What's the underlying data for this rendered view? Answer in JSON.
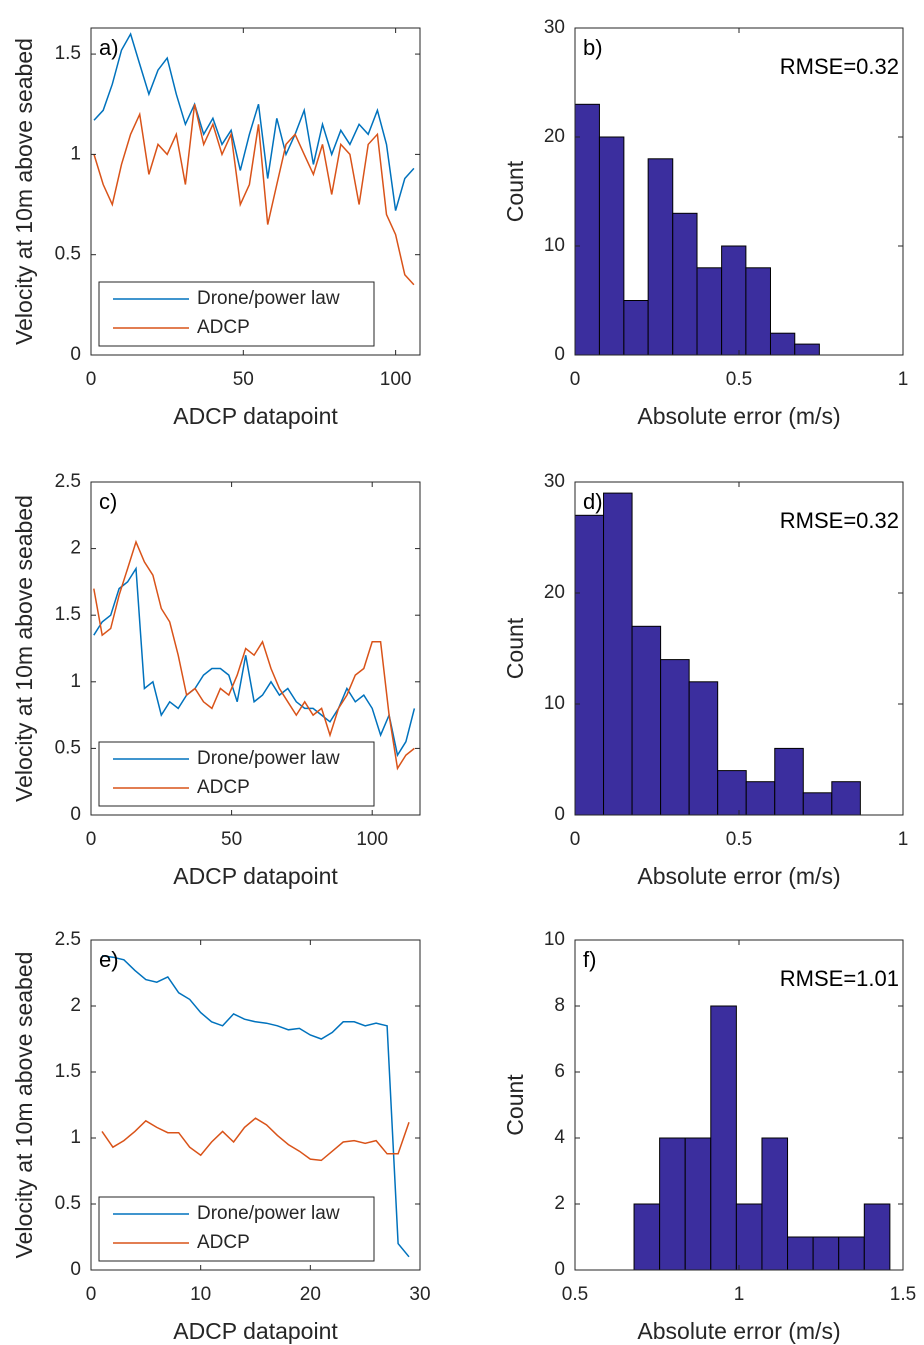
{
  "chart_data": [
    {
      "type": "line",
      "annotations": [
        "a)"
      ],
      "xlabel": "ADCP datapoint",
      "ylabel": "Velocity at 10m above seabed",
      "x": [
        1,
        4,
        7,
        10,
        13,
        16,
        19,
        22,
        25,
        28,
        31,
        34,
        37,
        40,
        43,
        46,
        49,
        52,
        55,
        58,
        61,
        64,
        67,
        70,
        73,
        76,
        79,
        82,
        85,
        88,
        91,
        94,
        97,
        100,
        103,
        106
      ],
      "series": [
        {
          "name": "Drone/power law",
          "color": "#0072BD",
          "values": [
            1.17,
            1.22,
            1.35,
            1.52,
            1.6,
            1.45,
            1.3,
            1.42,
            1.48,
            1.3,
            1.15,
            1.25,
            1.1,
            1.18,
            1.05,
            1.12,
            0.92,
            1.1,
            1.25,
            0.88,
            1.18,
            1.0,
            1.1,
            1.22,
            0.95,
            1.15,
            1.0,
            1.12,
            1.05,
            1.15,
            1.1,
            1.22,
            1.05,
            0.72,
            0.88,
            0.93
          ]
        },
        {
          "name": "ADCP",
          "color": "#D95319",
          "values": [
            1.0,
            0.85,
            0.75,
            0.95,
            1.1,
            1.2,
            0.9,
            1.05,
            1.0,
            1.1,
            0.85,
            1.25,
            1.05,
            1.15,
            1.0,
            1.1,
            0.75,
            0.85,
            1.15,
            0.65,
            0.85,
            1.05,
            1.1,
            1.0,
            0.9,
            1.05,
            0.8,
            1.05,
            1.0,
            0.75,
            1.05,
            1.1,
            0.7,
            0.6,
            0.4,
            0.35
          ]
        }
      ],
      "xlim": [
        0,
        108
      ],
      "ylim": [
        0,
        1.63
      ],
      "xticks": [
        0,
        50,
        100
      ],
      "yticks": [
        0,
        0.5,
        1,
        1.5
      ],
      "legend": "lower left"
    },
    {
      "type": "histogram",
      "annotations": [
        "b)",
        "RMSE=0.32"
      ],
      "xlabel": "Absolute error (m/s)",
      "ylabel": "Count",
      "color": "#3B2E9E",
      "bins": [
        0,
        0.0745,
        0.149,
        0.223,
        0.298,
        0.372,
        0.447,
        0.521,
        0.596,
        0.67,
        0.745
      ],
      "values": [
        23,
        20,
        5,
        18,
        13,
        8,
        10,
        8,
        2,
        1
      ],
      "xlim": [
        0,
        1
      ],
      "ylim": [
        0,
        30
      ],
      "xticks": [
        0,
        0.5,
        1
      ],
      "yticks": [
        0,
        10,
        20,
        30
      ]
    },
    {
      "type": "line",
      "annotations": [
        "c)"
      ],
      "xlabel": "ADCP datapoint",
      "ylabel": "Velocity at 10m above seabed",
      "x": [
        1,
        4,
        7,
        10,
        13,
        16,
        19,
        22,
        25,
        28,
        31,
        34,
        37,
        40,
        43,
        46,
        49,
        52,
        55,
        58,
        61,
        64,
        67,
        70,
        73,
        76,
        79,
        82,
        85,
        88,
        91,
        94,
        97,
        100,
        103,
        106,
        109,
        112,
        115
      ],
      "series": [
        {
          "name": "Drone/power law",
          "color": "#0072BD",
          "values": [
            1.35,
            1.45,
            1.5,
            1.7,
            1.75,
            1.85,
            0.95,
            1.0,
            0.75,
            0.85,
            0.8,
            0.9,
            0.95,
            1.05,
            1.1,
            1.1,
            1.05,
            0.85,
            1.2,
            0.85,
            0.9,
            1.0,
            0.9,
            0.95,
            0.85,
            0.8,
            0.8,
            0.75,
            0.7,
            0.8,
            0.95,
            0.85,
            0.9,
            0.8,
            0.6,
            0.75,
            0.45,
            0.55,
            0.8
          ]
        },
        {
          "name": "ADCP",
          "color": "#D95319",
          "values": [
            1.7,
            1.35,
            1.4,
            1.65,
            1.85,
            2.05,
            1.9,
            1.8,
            1.55,
            1.45,
            1.2,
            0.9,
            0.95,
            0.85,
            0.8,
            0.95,
            0.9,
            1.05,
            1.25,
            1.2,
            1.3,
            1.1,
            0.95,
            0.85,
            0.75,
            0.85,
            0.75,
            0.8,
            0.6,
            0.8,
            0.9,
            1.05,
            1.1,
            1.3,
            1.3,
            0.75,
            0.35,
            0.45,
            0.5
          ]
        }
      ],
      "xlim": [
        0,
        117
      ],
      "ylim": [
        0,
        2.5
      ],
      "xticks": [
        0,
        50,
        100
      ],
      "yticks": [
        0,
        0.5,
        1,
        1.5,
        2,
        2.5
      ],
      "legend": "lower left"
    },
    {
      "type": "histogram",
      "annotations": [
        "d)",
        "RMSE=0.32"
      ],
      "xlabel": "Absolute error (m/s)",
      "ylabel": "Count",
      "color": "#3B2E9E",
      "bins": [
        0,
        0.087,
        0.174,
        0.261,
        0.348,
        0.435,
        0.522,
        0.609,
        0.696,
        0.783,
        0.87
      ],
      "values": [
        27,
        29,
        17,
        14,
        12,
        4,
        3,
        6,
        2,
        3
      ],
      "xlim": [
        0,
        1
      ],
      "ylim": [
        0,
        30
      ],
      "xticks": [
        0,
        0.5,
        1
      ],
      "yticks": [
        0,
        10,
        20,
        30
      ]
    },
    {
      "type": "line",
      "annotations": [
        "e)"
      ],
      "xlabel": "ADCP datapoint",
      "ylabel": "Velocity at 10m above seabed",
      "x": [
        1,
        2,
        3,
        4,
        5,
        6,
        7,
        8,
        9,
        10,
        11,
        12,
        13,
        14,
        15,
        16,
        17,
        18,
        19,
        20,
        21,
        22,
        23,
        24,
        25,
        26,
        27,
        28,
        29
      ],
      "series": [
        {
          "name": "Drone/power law",
          "color": "#0072BD",
          "values": [
            2.38,
            2.37,
            2.35,
            2.27,
            2.2,
            2.18,
            2.22,
            2.1,
            2.05,
            1.95,
            1.88,
            1.85,
            1.94,
            1.9,
            1.88,
            1.87,
            1.85,
            1.82,
            1.83,
            1.78,
            1.75,
            1.8,
            1.88,
            1.88,
            1.85,
            1.87,
            1.85,
            0.2,
            0.1
          ]
        },
        {
          "name": "ADCP",
          "color": "#D95319",
          "values": [
            1.05,
            0.93,
            0.98,
            1.05,
            1.13,
            1.08,
            1.04,
            1.04,
            0.93,
            0.87,
            0.97,
            1.05,
            0.97,
            1.08,
            1.15,
            1.1,
            1.02,
            0.95,
            0.9,
            0.84,
            0.83,
            0.9,
            0.97,
            0.98,
            0.96,
            0.98,
            0.88,
            0.88,
            1.12
          ]
        }
      ],
      "xlim": [
        0,
        30
      ],
      "ylim": [
        0,
        2.5
      ],
      "xticks": [
        0,
        10,
        20,
        30
      ],
      "yticks": [
        0,
        0.5,
        1,
        1.5,
        2,
        2.5
      ],
      "legend": "lower left"
    },
    {
      "type": "histogram",
      "annotations": [
        "f)",
        "RMSE=1.01"
      ],
      "xlabel": "Absolute error (m/s)",
      "ylabel": "Count",
      "color": "#3B2E9E",
      "bins": [
        0.68,
        0.758,
        0.836,
        0.914,
        0.992,
        1.07,
        1.148,
        1.226,
        1.304,
        1.382,
        1.46
      ],
      "values": [
        2,
        4,
        4,
        8,
        2,
        4,
        1,
        1,
        1,
        2
      ],
      "xlim": [
        0.5,
        1.5
      ],
      "ylim": [
        0,
        10
      ],
      "xticks": [
        0.5,
        1,
        1.5
      ],
      "yticks": [
        0,
        2,
        4,
        6,
        8,
        10
      ]
    }
  ]
}
